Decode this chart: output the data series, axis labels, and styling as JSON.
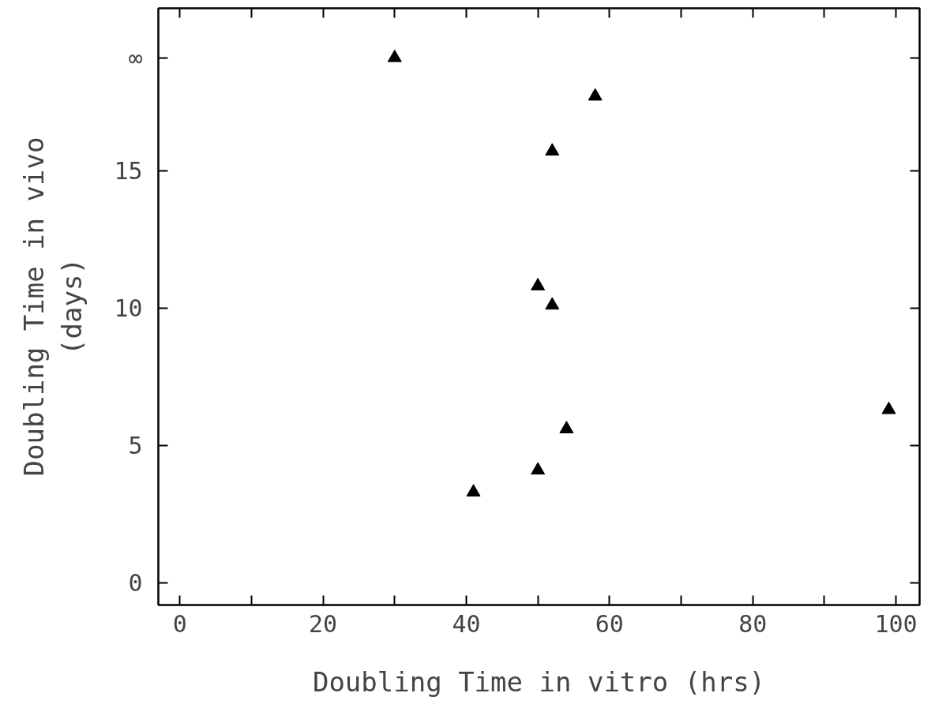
{
  "chart_data": {
    "type": "scatter",
    "xlabel": "Doubling Time in vitro (hrs)",
    "ylabel": "Doubling Time in vivo\n(days)",
    "x": [
      30,
      58,
      52,
      50,
      52,
      54,
      50,
      41,
      99
    ],
    "series": [
      {
        "color": "#000000",
        "values": [
          19.1,
          17.7,
          15.7,
          10.8,
          10.1,
          5.6,
          4.1,
          3.3,
          6.3
        ]
      }
    ],
    "marker": "triangle",
    "grid": false,
    "xlim": [
      -3,
      103.3
    ],
    "ylim": [
      -0.8,
      20.9
    ],
    "xticks": [
      0,
      {
        "value": 10,
        "label": null
      },
      20,
      {
        "value": 30,
        "label": null
      },
      40,
      {
        "value": 50,
        "label": null
      },
      60,
      {
        "value": 70,
        "label": null
      },
      80,
      {
        "value": 90,
        "label": null
      },
      100
    ],
    "yticks": [
      0,
      5,
      10,
      15,
      {
        "value": 19.1,
        "label": "∞"
      }
    ]
  }
}
